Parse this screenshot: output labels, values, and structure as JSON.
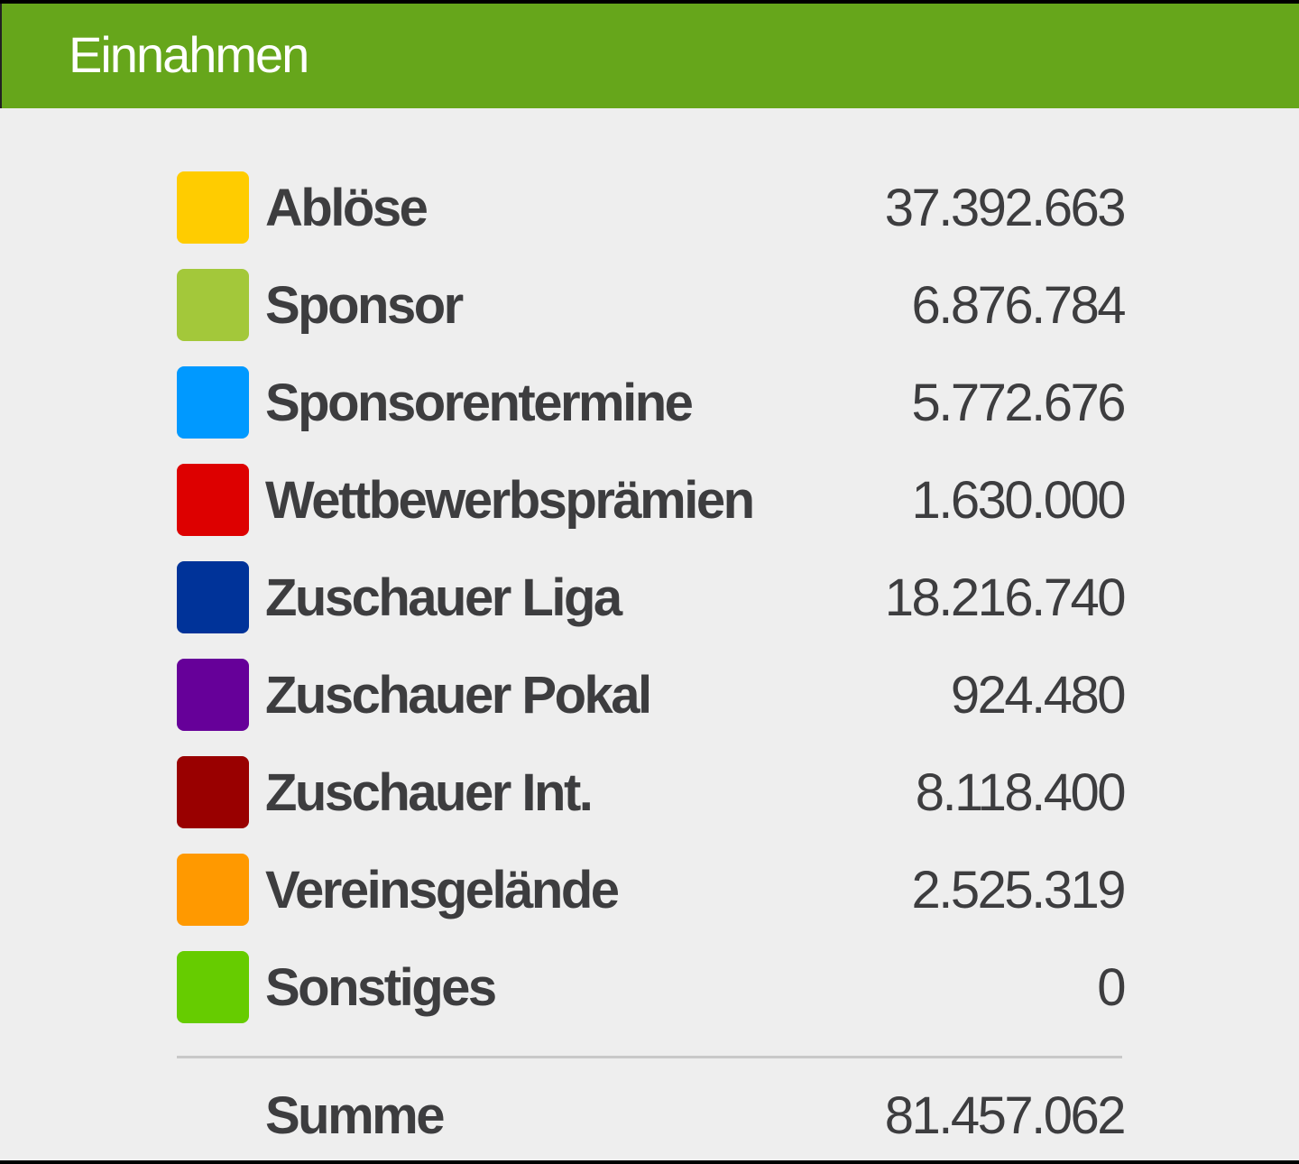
{
  "header": {
    "title": "Einnahmen",
    "color": "#66a61b"
  },
  "rows": [
    {
      "label": "Ablöse",
      "value": "37.392.663",
      "color": "#ffcc00"
    },
    {
      "label": "Sponsor",
      "value": "6.876.784",
      "color": "#a3c83a"
    },
    {
      "label": "Sponsorentermine",
      "value": "5.772.676",
      "color": "#0099ff"
    },
    {
      "label": "Wettbewerbsprämien",
      "value": "1.630.000",
      "color": "#dd0000"
    },
    {
      "label": "Zuschauer Liga",
      "value": "18.216.740",
      "color": "#003399"
    },
    {
      "label": "Zuschauer Pokal",
      "value": "924.480",
      "color": "#660099"
    },
    {
      "label": "Zuschauer Int.",
      "value": "8.118.400",
      "color": "#990000"
    },
    {
      "label": "Vereinsgelände",
      "value": "2.525.319",
      "color": "#ff9900"
    },
    {
      "label": "Sonstiges",
      "value": "0",
      "color": "#66cc00"
    }
  ],
  "total": {
    "label": "Summe",
    "value": "81.457.062"
  }
}
